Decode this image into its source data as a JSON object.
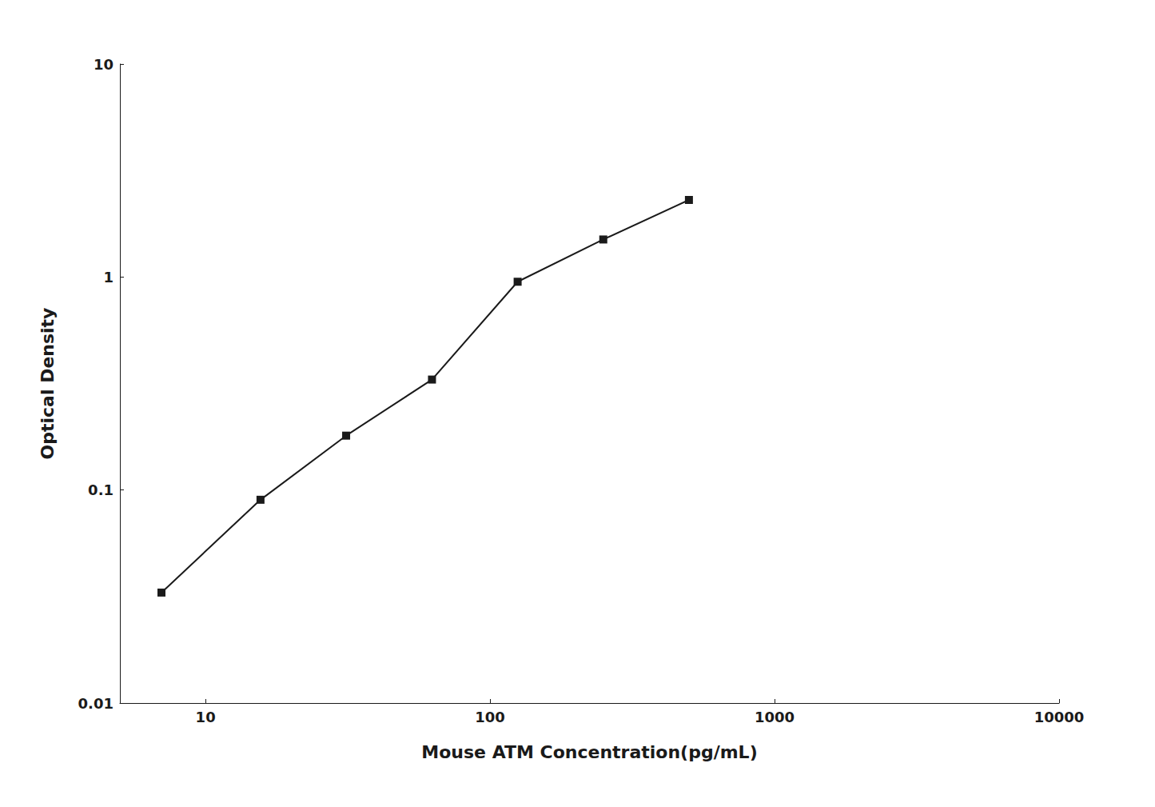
{
  "chart_data": {
    "type": "line",
    "x": [
      7,
      15.6,
      31.2,
      62.5,
      125,
      250,
      500
    ],
    "values": [
      0.033,
      0.09,
      0.18,
      0.33,
      0.95,
      1.5,
      2.3
    ],
    "xlabel": "Mouse ATM Concentration(pg/mL)",
    "ylabel": "Optical Density",
    "xlim": [
      5,
      10000
    ],
    "ylim": [
      0.01,
      10
    ],
    "xticks": [
      10,
      100,
      1000,
      10000
    ],
    "yticks": [
      0.01,
      0.1,
      1,
      10
    ],
    "log": true,
    "grid": false,
    "color": "#1a1a1a",
    "marker": "square"
  }
}
